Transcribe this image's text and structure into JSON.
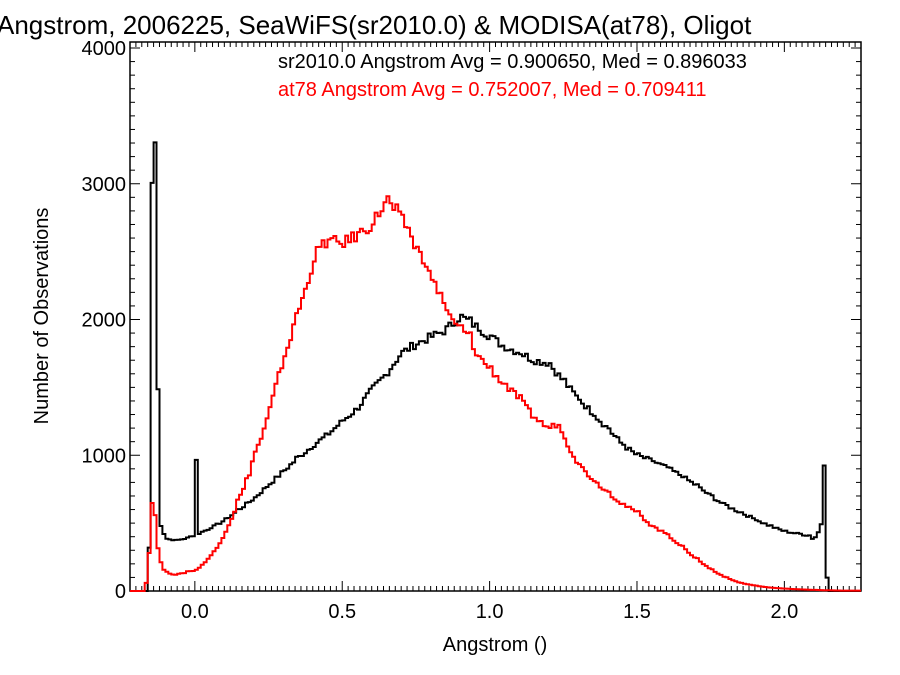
{
  "chart_data": {
    "type": "line",
    "title": "Angstrom, 2006225, SeaWiFS(sr2010.0) & MODISA(at78), Oligot",
    "xlabel": "Angstrom ()",
    "ylabel": "Number of Observations",
    "xlim": [
      -0.22,
      2.26
    ],
    "ylim": [
      0,
      4000
    ],
    "x_ticks": [
      0.0,
      0.5,
      1.0,
      1.5,
      2.0
    ],
    "x_tick_labels": [
      "0.0",
      "0.5",
      "1.0",
      "1.5",
      "2.0"
    ],
    "y_ticks": [
      0,
      1000,
      2000,
      3000,
      4000
    ],
    "y_tick_labels": [
      "0",
      "1000",
      "2000",
      "3000",
      "4000"
    ],
    "grid": false,
    "annotations": [
      {
        "text": "sr2010.0 Angstrom Avg = 0.900650, Med = 0.896033",
        "color": "#000000"
      },
      {
        "text": "at78 Angstrom Avg = 0.752007, Med = 0.709411",
        "color": "#ff0000"
      }
    ],
    "series": [
      {
        "color": "#000000",
        "points": [
          [
            -0.22,
            0
          ],
          [
            -0.16,
            0
          ],
          [
            -0.155,
            320
          ],
          [
            -0.15,
            500
          ],
          [
            -0.145,
            1500
          ],
          [
            -0.14,
            3000
          ],
          [
            -0.135,
            3350
          ],
          [
            -0.13,
            1500
          ],
          [
            -0.125,
            700
          ],
          [
            -0.12,
            480
          ],
          [
            -0.11,
            420
          ],
          [
            -0.1,
            390
          ],
          [
            -0.08,
            370
          ],
          [
            -0.06,
            380
          ],
          [
            -0.04,
            375
          ],
          [
            -0.02,
            400
          ],
          [
            0.0,
            410
          ],
          [
            0.0,
            960
          ],
          [
            0.0,
            410
          ],
          [
            0.03,
            440
          ],
          [
            0.06,
            470
          ],
          [
            0.1,
            520
          ],
          [
            0.15,
            600
          ],
          [
            0.2,
            680
          ],
          [
            0.25,
            780
          ],
          [
            0.3,
            880
          ],
          [
            0.35,
            980
          ],
          [
            0.4,
            1070
          ],
          [
            0.45,
            1150
          ],
          [
            0.5,
            1250
          ],
          [
            0.55,
            1340
          ],
          [
            0.6,
            1480
          ],
          [
            0.65,
            1600
          ],
          [
            0.7,
            1750
          ],
          [
            0.75,
            1820
          ],
          [
            0.8,
            1870
          ],
          [
            0.85,
            1920
          ],
          [
            0.9,
            2020
          ],
          [
            0.93,
            1990
          ],
          [
            0.96,
            1940
          ],
          [
            1.0,
            1880
          ],
          [
            1.05,
            1800
          ],
          [
            1.1,
            1760
          ],
          [
            1.15,
            1700
          ],
          [
            1.2,
            1680
          ],
          [
            1.25,
            1550
          ],
          [
            1.3,
            1420
          ],
          [
            1.35,
            1310
          ],
          [
            1.4,
            1200
          ],
          [
            1.45,
            1080
          ],
          [
            1.5,
            1000
          ],
          [
            1.55,
            960
          ],
          [
            1.6,
            910
          ],
          [
            1.65,
            850
          ],
          [
            1.7,
            780
          ],
          [
            1.75,
            700
          ],
          [
            1.8,
            630
          ],
          [
            1.85,
            580
          ],
          [
            1.9,
            530
          ],
          [
            1.95,
            480
          ],
          [
            2.0,
            440
          ],
          [
            2.05,
            420
          ],
          [
            2.08,
            410
          ],
          [
            2.1,
            380
          ],
          [
            2.12,
            450
          ],
          [
            2.13,
            540
          ],
          [
            2.135,
            940
          ],
          [
            2.14,
            100
          ],
          [
            2.145,
            0
          ],
          [
            2.26,
            0
          ]
        ]
      },
      {
        "color": "#ff0000",
        "points": [
          [
            -0.22,
            0
          ],
          [
            -0.17,
            0
          ],
          [
            -0.16,
            120
          ],
          [
            -0.15,
            450
          ],
          [
            -0.145,
            650
          ],
          [
            -0.14,
            560
          ],
          [
            -0.13,
            320
          ],
          [
            -0.12,
            210
          ],
          [
            -0.1,
            140
          ],
          [
            -0.07,
            120
          ],
          [
            -0.04,
            130
          ],
          [
            -0.02,
            145
          ],
          [
            0.0,
            150
          ],
          [
            0.02,
            180
          ],
          [
            0.05,
            250
          ],
          [
            0.08,
            330
          ],
          [
            0.1,
            420
          ],
          [
            0.13,
            560
          ],
          [
            0.15,
            680
          ],
          [
            0.18,
            820
          ],
          [
            0.2,
            1000
          ],
          [
            0.23,
            1150
          ],
          [
            0.25,
            1300
          ],
          [
            0.28,
            1550
          ],
          [
            0.3,
            1700
          ],
          [
            0.33,
            1900
          ],
          [
            0.35,
            2050
          ],
          [
            0.38,
            2250
          ],
          [
            0.4,
            2420
          ],
          [
            0.42,
            2520
          ],
          [
            0.45,
            2580
          ],
          [
            0.5,
            2560
          ],
          [
            0.55,
            2620
          ],
          [
            0.6,
            2700
          ],
          [
            0.63,
            2800
          ],
          [
            0.65,
            2880
          ],
          [
            0.68,
            2800
          ],
          [
            0.72,
            2680
          ],
          [
            0.75,
            2520
          ],
          [
            0.78,
            2430
          ],
          [
            0.8,
            2300
          ],
          [
            0.83,
            2200
          ],
          [
            0.85,
            2080
          ],
          [
            0.88,
            1960
          ],
          [
            0.9,
            1940
          ],
          [
            0.93,
            1880
          ],
          [
            0.95,
            1760
          ],
          [
            1.0,
            1640
          ],
          [
            1.05,
            1520
          ],
          [
            1.1,
            1420
          ],
          [
            1.15,
            1280
          ],
          [
            1.2,
            1200
          ],
          [
            1.23,
            1230
          ],
          [
            1.25,
            1140
          ],
          [
            1.3,
            940
          ],
          [
            1.35,
            820
          ],
          [
            1.4,
            730
          ],
          [
            1.45,
            640
          ],
          [
            1.5,
            580
          ],
          [
            1.55,
            480
          ],
          [
            1.6,
            420
          ],
          [
            1.65,
            330
          ],
          [
            1.7,
            240
          ],
          [
            1.75,
            160
          ],
          [
            1.8,
            100
          ],
          [
            1.85,
            60
          ],
          [
            1.9,
            40
          ],
          [
            1.95,
            25
          ],
          [
            2.0,
            18
          ],
          [
            2.05,
            12
          ],
          [
            2.1,
            8
          ],
          [
            2.15,
            5
          ],
          [
            2.2,
            3
          ],
          [
            2.26,
            3
          ]
        ]
      }
    ]
  }
}
